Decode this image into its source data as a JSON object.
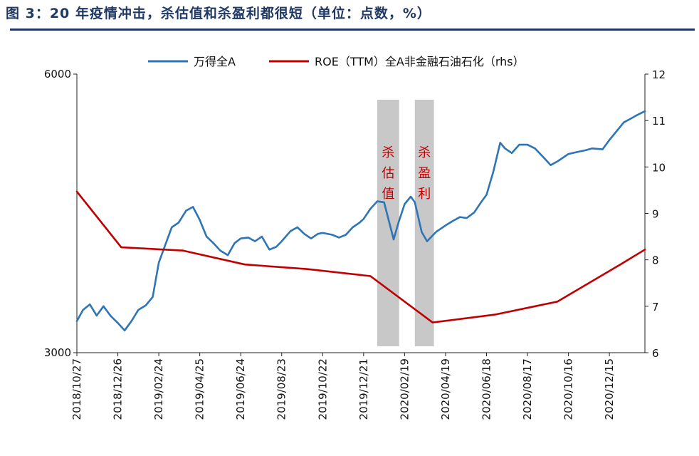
{
  "title": "图 3：20 年疫情冲击，杀估值和杀盈利都很短（单位：点数，%）",
  "chart_data": {
    "type": "line",
    "legend_position": "top",
    "grid": false,
    "x_ticks": [
      "2018/10/27",
      "2018/12/26",
      "2019/02/24",
      "2019/04/25",
      "2019/06/24",
      "2019/08/23",
      "2019/10/22",
      "2019/12/21",
      "2020/02/19",
      "2020/04/19",
      "2020/06/18",
      "2020/08/17",
      "2020/10/16",
      "2020/12/15"
    ],
    "x_range": [
      "2018/10/27",
      "2021/02/05"
    ],
    "y_left": {
      "min": 3000,
      "max": 6000,
      "tick_labels": [
        "6000",
        "3000"
      ]
    },
    "y_right": {
      "min": 6,
      "max": 12,
      "tick_labels": [
        "6",
        "7",
        "8",
        "9",
        "10",
        "11",
        "12"
      ]
    },
    "series": [
      {
        "name": "万得全A",
        "axis": "left",
        "color": "#2e75b6",
        "points": [
          [
            "2018/10/27",
            3340
          ],
          [
            "2018/11/05",
            3460
          ],
          [
            "2018/11/15",
            3520
          ],
          [
            "2018/11/25",
            3400
          ],
          [
            "2018/12/05",
            3500
          ],
          [
            "2018/12/15",
            3400
          ],
          [
            "2018/12/26",
            3320
          ],
          [
            "2019/01/05",
            3240
          ],
          [
            "2019/01/15",
            3340
          ],
          [
            "2019/01/25",
            3460
          ],
          [
            "2019/02/05",
            3510
          ],
          [
            "2019/02/15",
            3600
          ],
          [
            "2019/02/24",
            3970
          ],
          [
            "2019/03/05",
            4150
          ],
          [
            "2019/03/15",
            4350
          ],
          [
            "2019/03/25",
            4400
          ],
          [
            "2019/04/05",
            4530
          ],
          [
            "2019/04/15",
            4570
          ],
          [
            "2019/04/25",
            4430
          ],
          [
            "2019/05/05",
            4250
          ],
          [
            "2019/05/15",
            4180
          ],
          [
            "2019/05/25",
            4100
          ],
          [
            "2019/06/05",
            4050
          ],
          [
            "2019/06/15",
            4180
          ],
          [
            "2019/06/24",
            4230
          ],
          [
            "2019/07/05",
            4240
          ],
          [
            "2019/07/15",
            4200
          ],
          [
            "2019/07/25",
            4250
          ],
          [
            "2019/08/05",
            4110
          ],
          [
            "2019/08/15",
            4140
          ],
          [
            "2019/08/23",
            4200
          ],
          [
            "2019/09/05",
            4310
          ],
          [
            "2019/09/15",
            4350
          ],
          [
            "2019/09/25",
            4280
          ],
          [
            "2019/10/05",
            4230
          ],
          [
            "2019/10/15",
            4280
          ],
          [
            "2019/10/22",
            4290
          ],
          [
            "2019/11/05",
            4270
          ],
          [
            "2019/11/15",
            4240
          ],
          [
            "2019/11/25",
            4270
          ],
          [
            "2019/12/05",
            4350
          ],
          [
            "2019/12/15",
            4400
          ],
          [
            "2019/12/21",
            4440
          ],
          [
            "2019/12/31",
            4550
          ],
          [
            "2020/01/10",
            4630
          ],
          [
            "2020/01/20",
            4620
          ],
          [
            "2020/02/03",
            4220
          ],
          [
            "2020/02/10",
            4400
          ],
          [
            "2020/02/19",
            4600
          ],
          [
            "2020/02/28",
            4680
          ],
          [
            "2020/03/05",
            4620
          ],
          [
            "2020/03/15",
            4300
          ],
          [
            "2020/03/23",
            4200
          ],
          [
            "2020/04/05",
            4300
          ],
          [
            "2020/04/19",
            4370
          ],
          [
            "2020/04/30",
            4420
          ],
          [
            "2020/05/10",
            4460
          ],
          [
            "2020/05/20",
            4450
          ],
          [
            "2020/05/31",
            4510
          ],
          [
            "2020/06/10",
            4620
          ],
          [
            "2020/06/18",
            4700
          ],
          [
            "2020/06/28",
            4950
          ],
          [
            "2020/07/08",
            5260
          ],
          [
            "2020/07/15",
            5200
          ],
          [
            "2020/07/25",
            5150
          ],
          [
            "2020/08/05",
            5240
          ],
          [
            "2020/08/17",
            5240
          ],
          [
            "2020/08/28",
            5200
          ],
          [
            "2020/09/10",
            5100
          ],
          [
            "2020/09/20",
            5020
          ],
          [
            "2020/09/30",
            5060
          ],
          [
            "2020/10/16",
            5140
          ],
          [
            "2020/10/28",
            5160
          ],
          [
            "2020/11/10",
            5180
          ],
          [
            "2020/11/20",
            5200
          ],
          [
            "2020/12/05",
            5190
          ],
          [
            "2020/12/15",
            5290
          ],
          [
            "2020/12/25",
            5380
          ],
          [
            "2021/01/05",
            5480
          ],
          [
            "2021/01/15",
            5520
          ],
          [
            "2021/01/25",
            5560
          ],
          [
            "2021/02/05",
            5600
          ]
        ]
      },
      {
        "name": "ROE（TTM）全A非金融石油石化（rhs）",
        "axis": "right",
        "color": "#c00000",
        "points": [
          [
            "2018/10/27",
            9.47
          ],
          [
            "2018/12/31",
            8.27
          ],
          [
            "2019/03/31",
            8.2
          ],
          [
            "2019/06/30",
            7.9
          ],
          [
            "2019/09/30",
            7.8
          ],
          [
            "2019/12/31",
            7.65
          ],
          [
            "2020/03/31",
            6.65
          ],
          [
            "2020/06/30",
            6.82
          ],
          [
            "2020/09/30",
            7.1
          ],
          [
            "2020/12/31",
            7.9
          ],
          [
            "2021/02/05",
            8.22
          ]
        ]
      }
    ],
    "shaded_periods": [
      {
        "label": "杀估值",
        "start": "2020/01/10",
        "end": "2020/02/11"
      },
      {
        "label": "杀盈利",
        "start": "2020/03/05",
        "end": "2020/04/02"
      }
    ]
  }
}
